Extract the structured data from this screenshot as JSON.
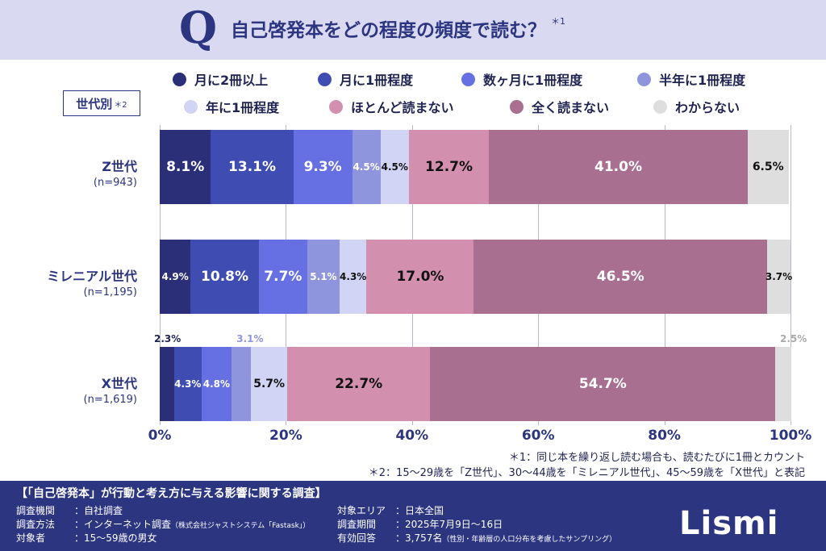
{
  "header": {
    "q_mark": "Q",
    "question": "自己啓発本をどの程度の頻度で読む？",
    "question_note": "＊1"
  },
  "group_label": {
    "text": "世代別",
    "note": "＊2"
  },
  "legend": [
    {
      "label": "月に2冊以上",
      "color": "#2a2f77"
    },
    {
      "label": "月に1冊程度",
      "color": "#3f4db3"
    },
    {
      "label": "数ヶ月に1冊程度",
      "color": "#6670e3"
    },
    {
      "label": "半年に1冊程度",
      "color": "#8f95dc"
    },
    {
      "label": "年に1冊程度",
      "color": "#d2d4f6"
    },
    {
      "label": "ほとんど読まない",
      "color": "#d38fae"
    },
    {
      "label": "全く読まない",
      "color": "#a86f91"
    },
    {
      "label": "わからない",
      "color": "#dedede"
    }
  ],
  "chart_data": {
    "type": "bar",
    "orientation": "horizontal",
    "stacked": true,
    "categories": [
      "Z世代",
      "ミレニアル世代",
      "X世代"
    ],
    "category_n": [
      "(n=943)",
      "(n=1,195)",
      "(n=1,619)"
    ],
    "series": [
      {
        "name": "月に2冊以上",
        "values": [
          8.1,
          4.9,
          2.3
        ]
      },
      {
        "name": "月に1冊程度",
        "values": [
          13.1,
          10.8,
          4.3
        ]
      },
      {
        "name": "数ヶ月に1冊程度",
        "values": [
          9.3,
          7.7,
          4.8
        ]
      },
      {
        "name": "半年に1冊程度",
        "values": [
          4.5,
          5.1,
          3.1
        ]
      },
      {
        "name": "年に1冊程度",
        "values": [
          4.5,
          4.3,
          5.7
        ]
      },
      {
        "name": "ほとんど読まない",
        "values": [
          12.7,
          17.0,
          22.7
        ]
      },
      {
        "name": "全く読まない",
        "values": [
          41.0,
          46.5,
          54.7
        ]
      },
      {
        "name": "わからない",
        "values": [
          6.5,
          3.7,
          2.5
        ]
      }
    ],
    "xlim": [
      0,
      100
    ],
    "x_ticks": [
      "0%",
      "20%",
      "40%",
      "60%",
      "80%",
      "100%"
    ],
    "value_suffix": "%"
  },
  "notes": [
    "＊1：同じ本を繰り返し読む場合も、読むたびに1冊とカウント",
    "＊2：15〜29歳を「Z世代」、30〜44歳を「ミレニアル世代」、45〜59歳を「X世代」と表記"
  ],
  "footer": {
    "title": "【「自己啓発本」が行動と考え方に与える影響に関する調査】",
    "left": [
      {
        "key": "調査機関",
        "value": "：自社調査",
        "small": ""
      },
      {
        "key": "調査方法",
        "value": "：インターネット調査",
        "small": "（株式会社ジャストシステム「Fastask」）"
      },
      {
        "key": "対象者",
        "value": "：15〜59歳の男女",
        "small": ""
      }
    ],
    "right": [
      {
        "key": "対象エリア",
        "value": "：日本全国",
        "small": ""
      },
      {
        "key": "調査期間",
        "value": "：2025年7月9日〜16日",
        "small": ""
      },
      {
        "key": "有効回答",
        "value": "：3,757名",
        "small": "（性別・年齢層の人口分布を考慮したサンプリング）"
      }
    ],
    "logo": "Lismi"
  }
}
